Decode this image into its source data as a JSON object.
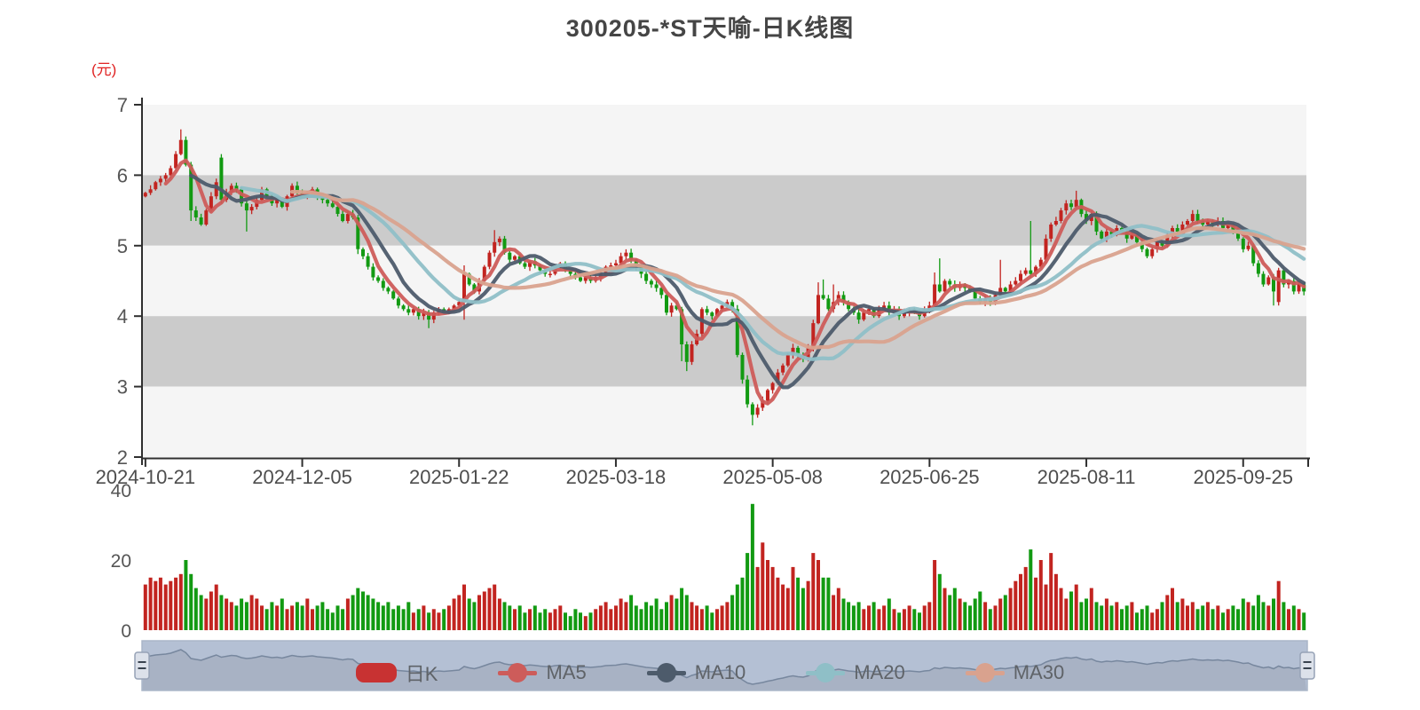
{
  "title": "300205-*ST天喻-日K线图",
  "price_axis": {
    "unit": "(元)",
    "ticks": [
      "7",
      "6",
      "5",
      "4",
      "3",
      "2"
    ],
    "min": 2,
    "max": 7
  },
  "volume_axis": {
    "ticks": [
      "40",
      "20",
      "0"
    ],
    "max": 40
  },
  "x_axis": {
    "tick_labels": [
      "2024-10-21",
      "2024-12-05",
      "2025-01-22",
      "2025-03-18",
      "2025-05-08",
      "2025-06-25",
      "2025-08-11",
      "2025-09-25"
    ],
    "tick_indices": [
      0,
      31,
      62,
      93,
      124,
      155,
      186,
      217
    ]
  },
  "legend": {
    "items": [
      {
        "label": "日K",
        "color": "#c83232",
        "type": "candle"
      },
      {
        "label": "MA5",
        "color": "#cd5c5a",
        "type": "line"
      },
      {
        "label": "MA10",
        "color": "#4d5b6b",
        "type": "line"
      },
      {
        "label": "MA20",
        "color": "#8fbfc7",
        "type": "line"
      },
      {
        "label": "MA30",
        "color": "#d9a28e",
        "type": "line"
      }
    ]
  },
  "colors": {
    "up": "#c22420",
    "down": "#129a12",
    "band_light": "#f5f5f5",
    "band_dark": "#cbcbcb",
    "axis_line": "#2f2f2f",
    "axis_text": "#555555",
    "slider_bg": "#b4c0d4",
    "slider_fill": "#a8b2c4",
    "slider_line": "#77879e",
    "slider_border": "#aab6c8",
    "handle_fill": "#dce1ea",
    "handle_border": "#96a2b6",
    "handle_grip": "#39434f"
  },
  "chart_data": {
    "type": "candlestick",
    "title": "300205-*ST天喻-日K线图",
    "ylabel": "(元)",
    "ylim": [
      2,
      7
    ],
    "volume_ylim": [
      0,
      40
    ],
    "first_open": 5.7,
    "ma_windows": [
      5,
      10,
      20,
      30
    ],
    "closes": [
      5.75,
      5.8,
      5.9,
      5.95,
      6.0,
      6.1,
      6.3,
      6.5,
      6.15,
      5.5,
      5.4,
      5.3,
      5.5,
      5.7,
      5.9,
      5.65,
      5.75,
      5.85,
      5.8,
      5.6,
      5.5,
      5.55,
      5.65,
      5.8,
      5.7,
      5.6,
      5.65,
      5.55,
      5.7,
      5.85,
      5.75,
      5.7,
      5.75,
      5.8,
      5.7,
      5.65,
      5.6,
      5.55,
      5.45,
      5.35,
      5.45,
      5.4,
      4.95,
      4.85,
      4.7,
      4.55,
      4.5,
      4.4,
      4.35,
      4.25,
      4.15,
      4.1,
      4.05,
      4.1,
      4.0,
      4.05,
      3.95,
      4.05,
      4.1,
      4.05,
      4.1,
      4.15,
      4.2,
      4.6,
      4.45,
      4.35,
      4.5,
      4.7,
      4.9,
      5.05,
      5.1,
      4.9,
      4.8,
      4.85,
      4.75,
      4.7,
      4.78,
      4.72,
      4.65,
      4.6,
      4.6,
      4.7,
      4.75,
      4.65,
      4.6,
      4.55,
      4.5,
      4.55,
      4.5,
      4.55,
      4.6,
      4.7,
      4.72,
      4.75,
      4.85,
      4.9,
      4.8,
      4.7,
      4.6,
      4.5,
      4.45,
      4.4,
      4.3,
      4.05,
      4.15,
      4.1,
      3.6,
      3.35,
      3.6,
      3.75,
      4.1,
      4.05,
      4.0,
      4.1,
      4.15,
      4.2,
      4.1,
      3.45,
      3.1,
      2.75,
      2.6,
      2.7,
      2.8,
      2.95,
      3.05,
      3.2,
      3.3,
      3.45,
      3.55,
      3.45,
      3.4,
      3.55,
      3.9,
      4.3,
      4.25,
      4.1,
      4.2,
      4.3,
      4.2,
      4.1,
      4.05,
      3.95,
      4.05,
      4.1,
      4.0,
      4.1,
      4.15,
      4.05,
      4.1,
      4.0,
      4.05,
      4.1,
      4.05,
      4.0,
      4.1,
      4.15,
      4.45,
      4.35,
      4.5,
      4.45,
      4.4,
      4.45,
      4.4,
      4.35,
      4.25,
      4.2,
      4.25,
      4.2,
      4.3,
      4.4,
      4.35,
      4.45,
      4.5,
      4.6,
      4.65,
      4.6,
      4.7,
      4.8,
      5.1,
      5.3,
      5.35,
      5.5,
      5.6,
      5.55,
      5.65,
      5.45,
      5.35,
      5.45,
      5.2,
      5.1,
      5.2,
      5.15,
      5.25,
      5.2,
      5.1,
      5.15,
      5.05,
      4.95,
      4.85,
      4.95,
      5.05,
      5.0,
      5.15,
      5.25,
      5.2,
      5.3,
      5.35,
      5.45,
      5.35,
      5.3,
      5.35,
      5.3,
      5.35,
      5.25,
      5.3,
      5.2,
      5.1,
      4.95,
      5.0,
      4.75,
      4.6,
      4.45,
      4.55,
      4.35,
      4.65,
      4.45,
      4.5,
      4.35,
      4.45,
      4.35
    ],
    "volumes": [
      13,
      15,
      14,
      15,
      13,
      14,
      15,
      16,
      20,
      16,
      12,
      10,
      9,
      11,
      13,
      10,
      9,
      8,
      7,
      9,
      8,
      10,
      9,
      7,
      6,
      8,
      7,
      9,
      6,
      7,
      8,
      7,
      9,
      6,
      7,
      8,
      6,
      5,
      7,
      6,
      9,
      10,
      12,
      11,
      10,
      9,
      8,
      7,
      8,
      6,
      7,
      6,
      8,
      5,
      6,
      7,
      5,
      6,
      5,
      6,
      7,
      9,
      10,
      13,
      9,
      8,
      10,
      11,
      12,
      13,
      9,
      8,
      7,
      6,
      7,
      5,
      6,
      7,
      5,
      6,
      5,
      6,
      7,
      5,
      4,
      6,
      5,
      4,
      5,
      6,
      7,
      8,
      6,
      7,
      9,
      8,
      10,
      7,
      6,
      8,
      7,
      9,
      6,
      8,
      10,
      9,
      12,
      10,
      8,
      7,
      6,
      7,
      5,
      6,
      7,
      8,
      10,
      13,
      15,
      22,
      36,
      18,
      25,
      20,
      18,
      15,
      13,
      12,
      18,
      15,
      12,
      14,
      22,
      20,
      15,
      15,
      10,
      12,
      9,
      8,
      7,
      8,
      6,
      7,
      8,
      6,
      7,
      9,
      6,
      5,
      6,
      7,
      6,
      5,
      7,
      8,
      20,
      16,
      12,
      10,
      12,
      9,
      8,
      7,
      9,
      11,
      8,
      6,
      7,
      9,
      10,
      12,
      14,
      16,
      18,
      23,
      15,
      20,
      13,
      22,
      16,
      12,
      9,
      11,
      13,
      8,
      9,
      12,
      8,
      7,
      9,
      7,
      8,
      6,
      7,
      8,
      5,
      6,
      7,
      5,
      6,
      8,
      10,
      12,
      8,
      9,
      7,
      8,
      6,
      7,
      8,
      6,
      7,
      5,
      6,
      7,
      6,
      9,
      8,
      7,
      10,
      8,
      7,
      9,
      14,
      8,
      6,
      7,
      6,
      5
    ],
    "open_overrides": {
      "15": 6.25,
      "224": 4.2
    },
    "high_overrides": {
      "7": 6.65,
      "8": 6.55,
      "15": 6.3,
      "63": 4.72,
      "69": 5.22,
      "133": 4.48,
      "134": 4.52,
      "136": 4.45,
      "156": 4.62,
      "157": 4.82,
      "169": 4.8,
      "175": 5.35,
      "184": 5.78
    },
    "low_overrides": {
      "9": 5.35,
      "20": 5.2,
      "42": 4.88,
      "56": 3.83,
      "63": 3.95,
      "106": 3.36,
      "107": 3.22,
      "120": 2.45,
      "223": 4.15,
      "224": 4.15
    }
  }
}
